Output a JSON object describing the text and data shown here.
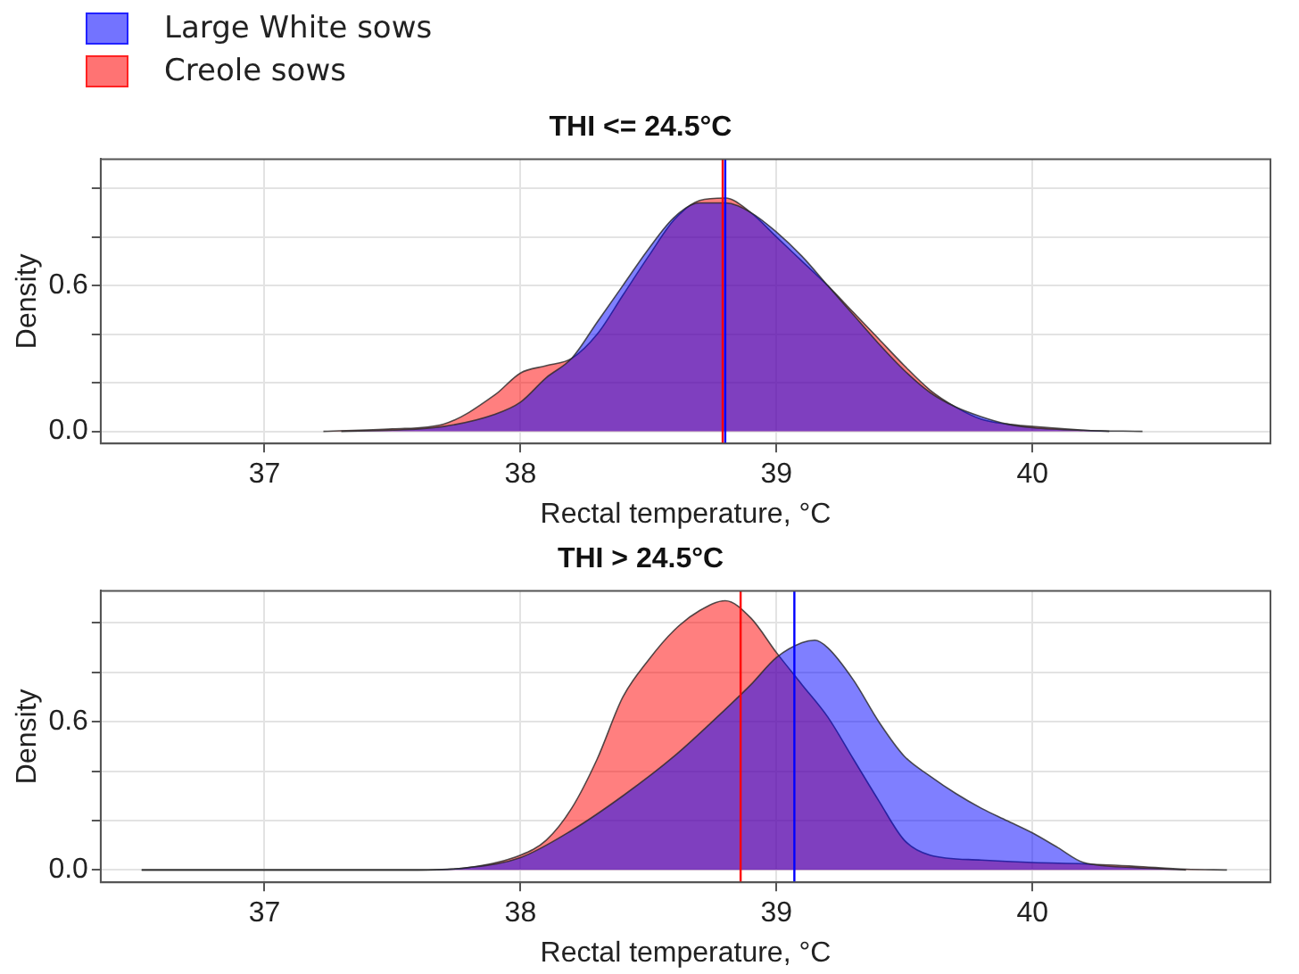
{
  "chart_data": [
    {
      "type": "area",
      "title": "THI <= 24.5°C",
      "xlabel": "Rectal temperature, °C",
      "ylabel": "Density",
      "legend": "top left",
      "grid": true,
      "xlim": [
        36.36,
        40.93
      ],
      "xticks": [
        37,
        38,
        39,
        40
      ],
      "ylim": [
        -0.05,
        1.12
      ],
      "yticks": [
        {
          "value": 0,
          "label": "0.0"
        },
        {
          "value": 0.2,
          "label": null
        },
        {
          "value": 0.4,
          "label": null
        },
        {
          "value": 0.6,
          "label": "0.6"
        },
        {
          "value": 0.8,
          "label": null
        },
        {
          "value": 1.0,
          "label": null
        }
      ],
      "series": [
        {
          "name": "Large White sows",
          "color": "#0000ff",
          "x": [
            37.3,
            37.5,
            37.7,
            37.9,
            38.0,
            38.1,
            38.2,
            38.3,
            38.4,
            38.5,
            38.6,
            38.7,
            38.8,
            38.9,
            39.0,
            39.1,
            39.2,
            39.3,
            39.4,
            39.5,
            39.6,
            39.7,
            39.8,
            39.9,
            40.0,
            40.2,
            40.43
          ],
          "values": [
            0,
            0.005,
            0.02,
            0.07,
            0.12,
            0.22,
            0.3,
            0.45,
            0.6,
            0.75,
            0.88,
            0.94,
            0.94,
            0.9,
            0.82,
            0.72,
            0.6,
            0.48,
            0.36,
            0.25,
            0.16,
            0.1,
            0.06,
            0.03,
            0.015,
            0.004,
            0
          ]
        },
        {
          "name": "Creole sows",
          "color": "#ff0000",
          "x": [
            37.23,
            37.5,
            37.7,
            37.9,
            38.0,
            38.1,
            38.2,
            38.3,
            38.4,
            38.5,
            38.6,
            38.7,
            38.8,
            38.9,
            39.0,
            39.1,
            39.2,
            39.3,
            39.4,
            39.5,
            39.6,
            39.7,
            39.8,
            39.9,
            40.0,
            40.2,
            40.3
          ],
          "values": [
            0,
            0.01,
            0.03,
            0.15,
            0.24,
            0.27,
            0.3,
            0.4,
            0.56,
            0.72,
            0.87,
            0.95,
            0.96,
            0.9,
            0.8,
            0.7,
            0.6,
            0.49,
            0.38,
            0.27,
            0.17,
            0.1,
            0.05,
            0.03,
            0.02,
            0.005,
            0
          ]
        }
      ],
      "ref_lines": [
        {
          "axis": "x",
          "value": 38.79,
          "color": "#ff0000"
        },
        {
          "axis": "x",
          "value": 38.8,
          "color": "#0000ff"
        }
      ]
    },
    {
      "type": "area",
      "title": "THI > 24.5°C",
      "xlabel": "Rectal temperature, °C",
      "ylabel": "Density",
      "grid": true,
      "xlim": [
        36.36,
        40.93
      ],
      "xticks": [
        37,
        38,
        39,
        40
      ],
      "ylim": [
        -0.05,
        1.13
      ],
      "yticks": [
        {
          "value": 0,
          "label": "0.0"
        },
        {
          "value": 0.2,
          "label": null
        },
        {
          "value": 0.4,
          "label": null
        },
        {
          "value": 0.6,
          "label": "0.6"
        },
        {
          "value": 0.8,
          "label": null
        },
        {
          "value": 1.0,
          "label": null
        }
      ],
      "series": [
        {
          "color": "#0000ff",
          "x": [
            36.52,
            37.6,
            37.8,
            38.0,
            38.2,
            38.4,
            38.6,
            38.8,
            38.9,
            39.0,
            39.1,
            39.15,
            39.2,
            39.3,
            39.4,
            39.5,
            39.6,
            39.7,
            39.8,
            39.9,
            40.0,
            40.1,
            40.2,
            40.4,
            40.6
          ],
          "values": [
            0,
            0,
            0.01,
            0.05,
            0.16,
            0.3,
            0.46,
            0.65,
            0.75,
            0.86,
            0.92,
            0.93,
            0.9,
            0.77,
            0.6,
            0.46,
            0.38,
            0.31,
            0.25,
            0.2,
            0.15,
            0.09,
            0.03,
            0.01,
            0
          ]
        },
        {
          "color": "#ff0000",
          "x": [
            36.52,
            37.6,
            37.8,
            38.0,
            38.1,
            38.2,
            38.3,
            38.4,
            38.5,
            38.6,
            38.7,
            38.8,
            38.9,
            39.0,
            39.1,
            39.2,
            39.3,
            39.4,
            39.5,
            39.6,
            39.8,
            40.0,
            40.2,
            40.4,
            40.6,
            40.76
          ],
          "values": [
            0,
            0,
            0.01,
            0.06,
            0.12,
            0.25,
            0.45,
            0.7,
            0.85,
            0.97,
            1.05,
            1.09,
            1.02,
            0.88,
            0.75,
            0.62,
            0.45,
            0.28,
            0.12,
            0.06,
            0.04,
            0.03,
            0.025,
            0.015,
            0.003,
            0
          ]
        }
      ],
      "ref_lines": [
        {
          "axis": "x",
          "value": 38.86,
          "color": "#ff0000"
        },
        {
          "axis": "x",
          "value": 39.07,
          "color": "#0000ff"
        }
      ]
    }
  ]
}
